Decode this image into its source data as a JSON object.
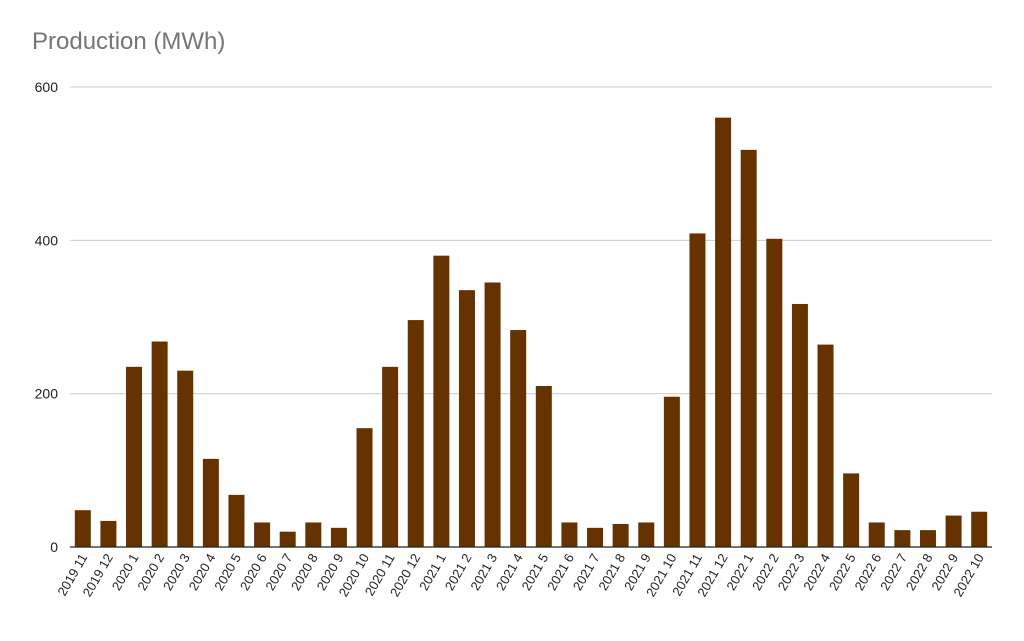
{
  "chart_data": {
    "type": "bar",
    "title": "Production (MWh)",
    "xlabel": "",
    "ylabel": "",
    "ylim": [
      0,
      600
    ],
    "yticks": [
      0,
      200,
      400,
      600
    ],
    "grid": true,
    "legend": "none",
    "categories": [
      "2019 11",
      "2019 12",
      "2020 1",
      "2020 2",
      "2020 3",
      "2020 4",
      "2020 5",
      "2020 6",
      "2020 7",
      "2020 8",
      "2020 9",
      "2020 10",
      "2020 11",
      "2020 12",
      "2021 1",
      "2021 2",
      "2021 3",
      "2021 4",
      "2021 5",
      "2021 6",
      "2021 7",
      "2021 8",
      "2021 9",
      "2021 10",
      "2021 11",
      "2021 12",
      "2022 1",
      "2022 2",
      "2022 3",
      "2022 4",
      "2022 5",
      "2022 6",
      "2022 7",
      "2022 8",
      "2022 9",
      "2022 10"
    ],
    "values": [
      48,
      34,
      235,
      268,
      230,
      115,
      68,
      32,
      20,
      32,
      25,
      155,
      235,
      296,
      380,
      335,
      345,
      283,
      210,
      32,
      25,
      30,
      32,
      196,
      409,
      560,
      518,
      402,
      317,
      264,
      96,
      32,
      22,
      22,
      41,
      46
    ],
    "colors": {
      "bar": "#663300",
      "grid": "#cccccc",
      "axis": "#222222",
      "title": "#757575"
    }
  }
}
